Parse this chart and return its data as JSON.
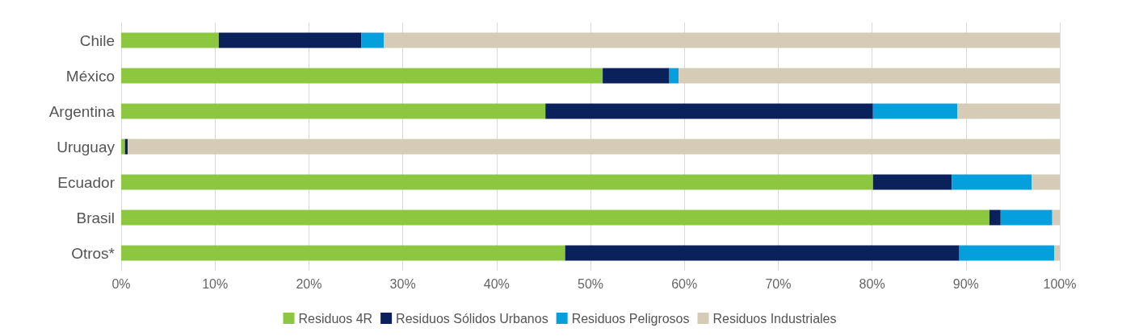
{
  "chart_data": {
    "type": "bar",
    "orientation": "horizontal",
    "stacked": true,
    "categories": [
      "Chile",
      "México",
      "Argentina",
      "Uruguay",
      "Ecuador",
      "Brasil",
      "Otros*"
    ],
    "series": [
      {
        "name": "Residuos 4R",
        "color": "#8dc63f",
        "values": [
          10.4,
          51.3,
          45.2,
          0.4,
          80.1,
          92.5,
          47.3
        ]
      },
      {
        "name": "Residuos Sólidos Urbanos",
        "color": "#0a215c",
        "values": [
          15.2,
          7.1,
          34.9,
          0.3,
          8.4,
          1.2,
          42.0
        ]
      },
      {
        "name": "Residuos Peligrosos",
        "color": "#069fdd",
        "values": [
          2.4,
          1.0,
          9.0,
          0,
          8.5,
          5.5,
          10.1
        ]
      },
      {
        "name": "Residuos Industriales",
        "color": "#d5cbb7",
        "values": [
          72.0,
          40.6,
          10.9,
          99.3,
          3.0,
          0.8,
          0.6
        ]
      }
    ],
    "xlim": [
      0,
      100
    ],
    "xticks": [
      {
        "value": 0,
        "label": "0%"
      },
      {
        "value": 10,
        "label": "10%"
      },
      {
        "value": 20,
        "label": "20%"
      },
      {
        "value": 30,
        "label": "30%"
      },
      {
        "value": 40,
        "label": "40%"
      },
      {
        "value": 50,
        "label": "50%"
      },
      {
        "value": 60,
        "label": "60%"
      },
      {
        "value": 70,
        "label": "70%"
      },
      {
        "value": 80,
        "label": "80%"
      },
      {
        "value": 90,
        "label": "90%"
      },
      {
        "value": 100,
        "label": "100%"
      }
    ],
    "grid": "x",
    "legend": "bottom"
  }
}
